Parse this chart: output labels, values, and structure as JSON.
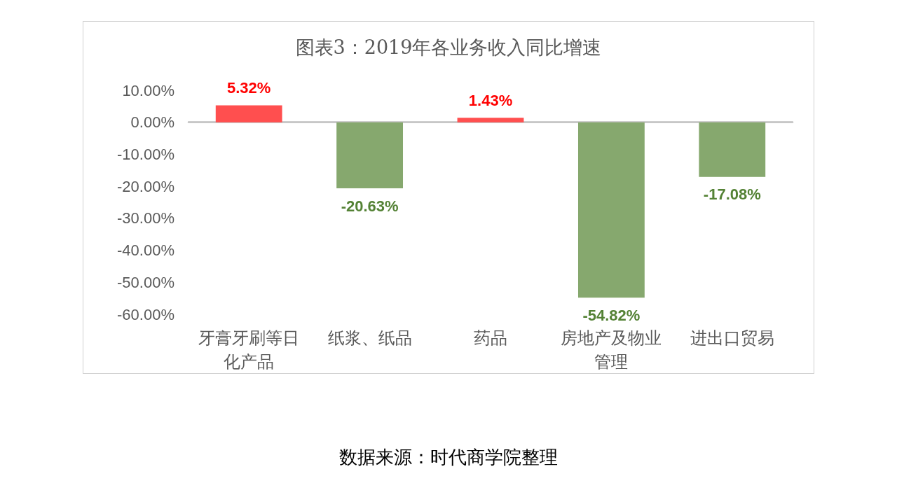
{
  "chart_data": {
    "type": "bar",
    "title": "图表3：2019年各业务收入同比增速",
    "categories": [
      "牙膏牙刷等日化产品",
      "纸浆、纸品",
      "药品",
      "房地产及物业管理",
      "进出口贸易"
    ],
    "values": [
      5.32,
      -20.63,
      1.43,
      -54.82,
      -17.08
    ],
    "colors": [
      "#ff4f4f",
      "#86a86e",
      "#ff4f4f",
      "#86a86e",
      "#86a86e"
    ],
    "value_labels": [
      "5.32%",
      "-20.63%",
      "1.43%",
      "-54.82%",
      "-17.08%"
    ],
    "ylim": [
      -60,
      10
    ],
    "yticks": [
      {
        "value": 10,
        "label": "10.00%"
      },
      {
        "value": 0,
        "label": "0.00%"
      },
      {
        "value": -10,
        "label": "-10.00%"
      },
      {
        "value": -20,
        "label": "-20.00%"
      },
      {
        "value": -30,
        "label": "-30.00%"
      },
      {
        "value": -40,
        "label": "-40.00%"
      },
      {
        "value": -50,
        "label": "-50.00%"
      },
      {
        "value": -60,
        "label": "-60.00%"
      }
    ],
    "annotations": [
      "数据来源：时代商学院整理"
    ]
  }
}
